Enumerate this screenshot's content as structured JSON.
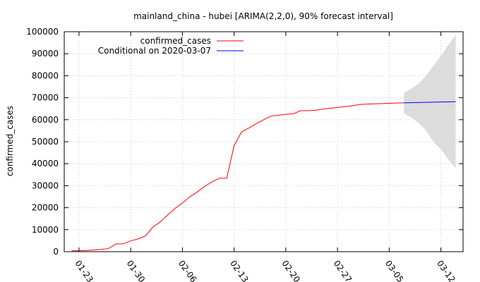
{
  "chart_data": {
    "type": "line",
    "title": "mainland_china - hubei [ARIMA(2,2,0), 90% forecast interval]",
    "xlabel": "",
    "ylabel": "confirmed_cases",
    "ylim": [
      0,
      100000
    ],
    "xlim": [
      "2020-01-21",
      "2020-03-15"
    ],
    "grid": true,
    "legend_position": "top-left",
    "x_ticks": [
      "01-23",
      "01-30",
      "02-06",
      "02-13",
      "02-20",
      "02-27",
      "03-05",
      "03-12"
    ],
    "y_ticks": [
      "0",
      "10000",
      "20000",
      "30000",
      "40000",
      "50000",
      "60000",
      "70000",
      "80000",
      "90000",
      "100000"
    ],
    "series": [
      {
        "name": "confirmed_cases",
        "color": "#ff0000",
        "points": [
          [
            "2020-01-22",
            444
          ],
          [
            "2020-01-23",
            444
          ],
          [
            "2020-01-24",
            549
          ],
          [
            "2020-01-25",
            761
          ],
          [
            "2020-01-26",
            1058
          ],
          [
            "2020-01-27",
            1423
          ],
          [
            "2020-01-28",
            3554
          ],
          [
            "2020-01-29",
            3554
          ],
          [
            "2020-01-30",
            4903
          ],
          [
            "2020-01-31",
            5806
          ],
          [
            "2020-02-01",
            7153
          ],
          [
            "2020-02-02",
            11177
          ],
          [
            "2020-02-03",
            13522
          ],
          [
            "2020-02-04",
            16678
          ],
          [
            "2020-02-05",
            19665
          ],
          [
            "2020-02-06",
            22112
          ],
          [
            "2020-02-07",
            24953
          ],
          [
            "2020-02-08",
            27100
          ],
          [
            "2020-02-09",
            29631
          ],
          [
            "2020-02-10",
            31728
          ],
          [
            "2020-02-11",
            33366
          ],
          [
            "2020-02-12",
            33366
          ],
          [
            "2020-02-13",
            48206
          ],
          [
            "2020-02-14",
            54406
          ],
          [
            "2020-02-15",
            56249
          ],
          [
            "2020-02-16",
            58182
          ],
          [
            "2020-02-17",
            59989
          ],
          [
            "2020-02-18",
            61682
          ],
          [
            "2020-02-19",
            62031
          ],
          [
            "2020-02-20",
            62442
          ],
          [
            "2020-02-21",
            62662
          ],
          [
            "2020-02-22",
            64084
          ],
          [
            "2020-02-23",
            64084
          ],
          [
            "2020-02-24",
            64287
          ],
          [
            "2020-02-25",
            64786
          ],
          [
            "2020-02-26",
            65187
          ],
          [
            "2020-02-27",
            65596
          ],
          [
            "2020-02-28",
            65914
          ],
          [
            "2020-02-29",
            66337
          ],
          [
            "2020-03-01",
            66907
          ],
          [
            "2020-03-02",
            67103
          ],
          [
            "2020-03-03",
            67217
          ],
          [
            "2020-03-04",
            67332
          ],
          [
            "2020-03-05",
            67466
          ],
          [
            "2020-03-06",
            67592
          ],
          [
            "2020-03-07",
            67666
          ]
        ]
      },
      {
        "name": "Conditional on 2020-03-07",
        "color": "#0000ff",
        "points": [
          [
            "2020-03-07",
            67666
          ],
          [
            "2020-03-10",
            67900
          ],
          [
            "2020-03-13",
            68100
          ],
          [
            "2020-03-14",
            68200
          ]
        ]
      }
    ],
    "interval": {
      "color": "#dcdcdc",
      "points": [
        [
          "2020-03-07",
          62800,
          72400
        ],
        [
          "2020-03-08",
          61000,
          74000
        ],
        [
          "2020-03-09",
          58400,
          76500
        ],
        [
          "2020-03-10",
          55000,
          80000
        ],
        [
          "2020-03-11",
          50000,
          84500
        ],
        [
          "2020-03-12",
          46500,
          89000
        ],
        [
          "2020-03-13",
          42000,
          94000
        ],
        [
          "2020-03-14",
          38000,
          98500
        ]
      ]
    }
  }
}
